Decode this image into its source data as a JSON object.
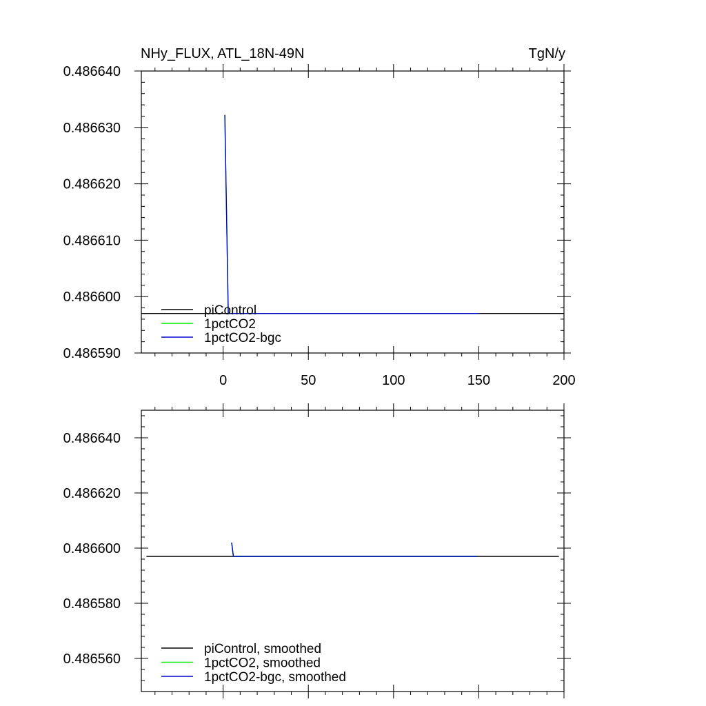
{
  "page": {
    "background": "#ffffff"
  },
  "chart_data": [
    {
      "type": "line",
      "title": "NHy_FLUX, ATL_18N-49N",
      "units": "TgN/y",
      "xlim": [
        -48,
        200
      ],
      "ylim": [
        0.48659,
        0.48664
      ],
      "xticks": [
        0,
        50,
        100,
        150,
        200
      ],
      "xtick_labels": [
        "0",
        "50",
        "100",
        "150",
        "200"
      ],
      "yticks": [
        0.48659,
        0.4866,
        0.48661,
        0.48662,
        0.48663,
        0.48664
      ],
      "ytick_labels": [
        "0.486590",
        "0.486600",
        "0.486610",
        "0.486620",
        "0.486630",
        "0.486640"
      ],
      "legend_position": "bottom-left",
      "series": [
        {
          "name": "piControl",
          "color": "#000000",
          "points": [
            [
              -48,
              0.486597
            ],
            [
              200,
              0.486597
            ]
          ]
        },
        {
          "name": "1pctCO2",
          "color": "#00ee00",
          "points": [
            [
              1,
              0.4866322
            ],
            [
              3,
              0.486597
            ],
            [
              150,
              0.486597
            ]
          ]
        },
        {
          "name": "1pctCO2-bgc",
          "color": "#0000cc",
          "points": [
            [
              1,
              0.4866322
            ],
            [
              3,
              0.486597
            ],
            [
              150,
              0.486597
            ]
          ]
        }
      ]
    },
    {
      "type": "line",
      "xlim": [
        -48,
        200
      ],
      "ylim": [
        0.486548,
        0.48665
      ],
      "xticks": [
        0,
        50,
        100,
        150,
        200
      ],
      "yticks": [
        0.48656,
        0.48658,
        0.4866,
        0.48662,
        0.48664
      ],
      "ytick_labels": [
        "0.486560",
        "0.486580",
        "0.486600",
        "0.486620",
        "0.486640"
      ],
      "legend_position": "bottom-left",
      "series": [
        {
          "name": "piControl, smoothed",
          "color": "#000000",
          "points": [
            [
              -45,
              0.486597
            ],
            [
              197,
              0.486597
            ]
          ]
        },
        {
          "name": "1pctCO2, smoothed",
          "color": "#00ee00",
          "points": [
            [
              5,
              0.486602
            ],
            [
              6,
              0.486597
            ],
            [
              149,
              0.486597
            ]
          ]
        },
        {
          "name": "1pctCO2-bgc, smoothed",
          "color": "#0000cc",
          "points": [
            [
              5,
              0.486602
            ],
            [
              6,
              0.486597
            ],
            [
              149,
              0.486597
            ]
          ]
        }
      ]
    }
  ]
}
